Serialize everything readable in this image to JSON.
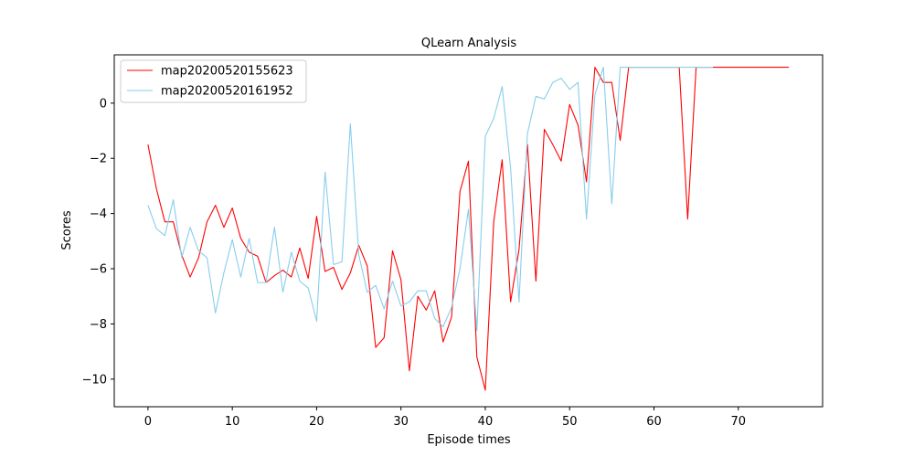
{
  "chart_data": {
    "type": "line",
    "title": "QLearn Analysis",
    "xlabel": "Episode times",
    "ylabel": "Scores",
    "xlim": [
      -4,
      80
    ],
    "ylim": [
      -11,
      1.75
    ],
    "xticks": [
      0,
      10,
      20,
      30,
      40,
      50,
      60,
      70
    ],
    "yticks": [
      -10,
      -8,
      -6,
      -4,
      -2,
      0
    ],
    "xtick_labels": [
      "0",
      "10",
      "20",
      "30",
      "40",
      "50",
      "60",
      "70"
    ],
    "ytick_labels": [
      "−10",
      "−8",
      "−6",
      "−4",
      "−2",
      "0"
    ],
    "grid": false,
    "legend_position": "top-left",
    "series": [
      {
        "name": "map20200520155623",
        "color": "#ff0000",
        "y": [
          -1.5,
          -3.1,
          -4.3,
          -4.3,
          -5.5,
          -6.3,
          -5.6,
          -4.3,
          -3.7,
          -4.5,
          -3.8,
          -4.9,
          -5.4,
          -5.55,
          -6.5,
          -6.25,
          -6.05,
          -6.3,
          -5.25,
          -6.35,
          -4.1,
          -6.1,
          -5.95,
          -6.75,
          -6.15,
          -5.15,
          -5.9,
          -8.85,
          -8.5,
          -5.35,
          -6.4,
          -9.7,
          -7.0,
          -7.5,
          -6.8,
          -8.65,
          -7.75,
          -3.2,
          -2.1,
          -9.2,
          -10.4,
          -4.3,
          -2.05,
          -7.2,
          -5.3,
          -1.5,
          -6.45,
          -0.95,
          -1.5,
          -2.1,
          -0.05,
          -0.8,
          -2.85,
          1.3,
          0.75,
          0.75,
          -1.35,
          1.3,
          1.3,
          1.3,
          1.3,
          1.3,
          1.3,
          1.3,
          -4.2,
          1.3,
          1.3,
          1.3,
          1.3,
          1.3,
          1.3,
          1.3,
          1.3,
          1.3,
          1.3,
          1.3,
          1.3
        ]
      },
      {
        "name": "map20200520161952",
        "color": "#87ceeb",
        "y": [
          -3.7,
          -4.55,
          -4.8,
          -3.5,
          -5.6,
          -4.5,
          -5.35,
          -5.6,
          -7.6,
          -6.15,
          -4.95,
          -6.3,
          -4.9,
          -6.5,
          -6.5,
          -4.5,
          -6.85,
          -5.4,
          -6.45,
          -6.7,
          -7.9,
          -2.5,
          -5.85,
          -5.75,
          -0.75,
          -5.5,
          -6.85,
          -6.6,
          -7.45,
          -6.45,
          -7.35,
          -7.2,
          -6.8,
          -6.8,
          -7.8,
          -8.1,
          -7.4,
          -6.0,
          -3.85,
          -8.25,
          -1.2,
          -0.55,
          0.6,
          -2.35,
          -7.2,
          -1.1,
          0.25,
          0.15,
          0.75,
          0.9,
          0.5,
          0.75,
          -4.2,
          0.3,
          1.3,
          -3.65,
          1.3,
          1.3,
          1.3,
          1.3,
          1.3,
          1.3,
          1.3,
          1.3,
          1.3,
          1.3,
          1.3,
          1.3
        ]
      }
    ]
  }
}
